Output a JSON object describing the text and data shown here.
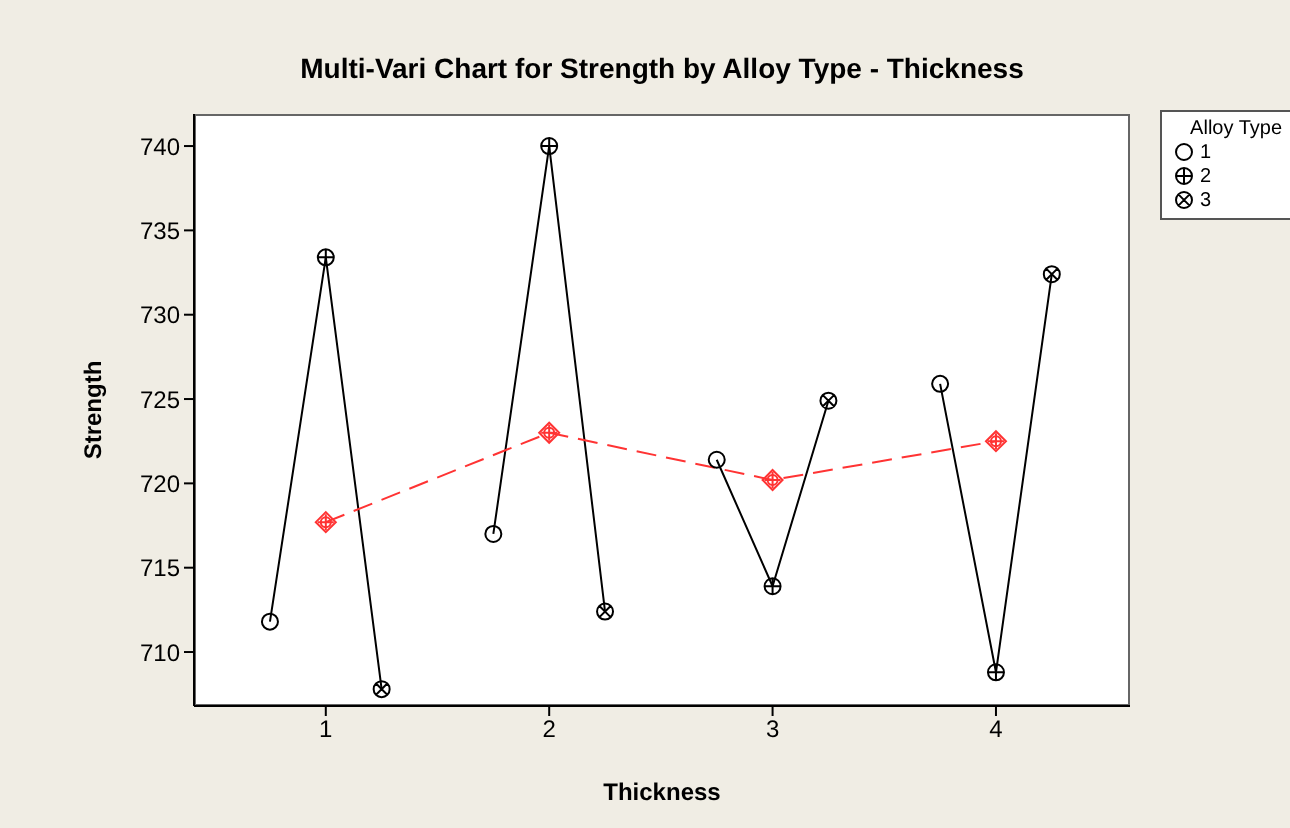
{
  "chart_data": {
    "type": "line",
    "title": "Multi-Vari Chart for Strength by Alloy Type - Thickness",
    "xlabel": "Thickness",
    "ylabel": "Strength",
    "legend_title": "Alloy Type",
    "legend": "top right",
    "grid": false,
    "xlim": [
      0.41,
      4.6
    ],
    "xticks": [
      1,
      2,
      3,
      4
    ],
    "ylim": [
      706.8,
      741.9
    ],
    "yticks": [
      710,
      715,
      720,
      725,
      730,
      735,
      740
    ],
    "series": [
      {
        "color": "#000000",
        "line_style": "solid",
        "x": [
          0.75,
          1,
          1.25
        ],
        "values": [
          711.8,
          733.4,
          707.8
        ]
      },
      {
        "color": "#000000",
        "line_style": "solid",
        "x": [
          1.75,
          2,
          2.25
        ],
        "values": [
          717.0,
          740.0,
          712.4
        ]
      },
      {
        "color": "#000000",
        "line_style": "solid",
        "x": [
          2.75,
          3,
          3.25
        ],
        "values": [
          721.4,
          713.9,
          724.9
        ]
      },
      {
        "color": "#000000",
        "line_style": "solid",
        "x": [
          3.75,
          4,
          4.25
        ],
        "values": [
          725.9,
          708.8,
          732.4
        ]
      },
      {
        "color": "#ff3333",
        "marker": "diamond",
        "line_style": "dashed",
        "x": [
          1,
          2,
          3,
          4
        ],
        "values": [
          717.7,
          723.0,
          720.2,
          722.5
        ]
      },
      {
        "type": "scatter",
        "name": "1",
        "color": "#000000",
        "marker": "circle",
        "x": [
          0.75,
          1.75,
          2.75,
          3.75
        ],
        "values": [
          711.8,
          717.0,
          721.4,
          725.9
        ]
      },
      {
        "type": "scatter",
        "name": "2",
        "color": "#000000",
        "x": [
          1,
          2,
          3,
          4
        ],
        "values": [
          733.4,
          740.0,
          713.9,
          708.8
        ]
      },
      {
        "type": "scatter",
        "name": "3",
        "color": "#000000",
        "marker": "cross",
        "x": [
          1.25,
          2.25,
          3.25,
          4.25
        ],
        "values": [
          707.8,
          712.4,
          724.9,
          732.4
        ]
      }
    ]
  }
}
